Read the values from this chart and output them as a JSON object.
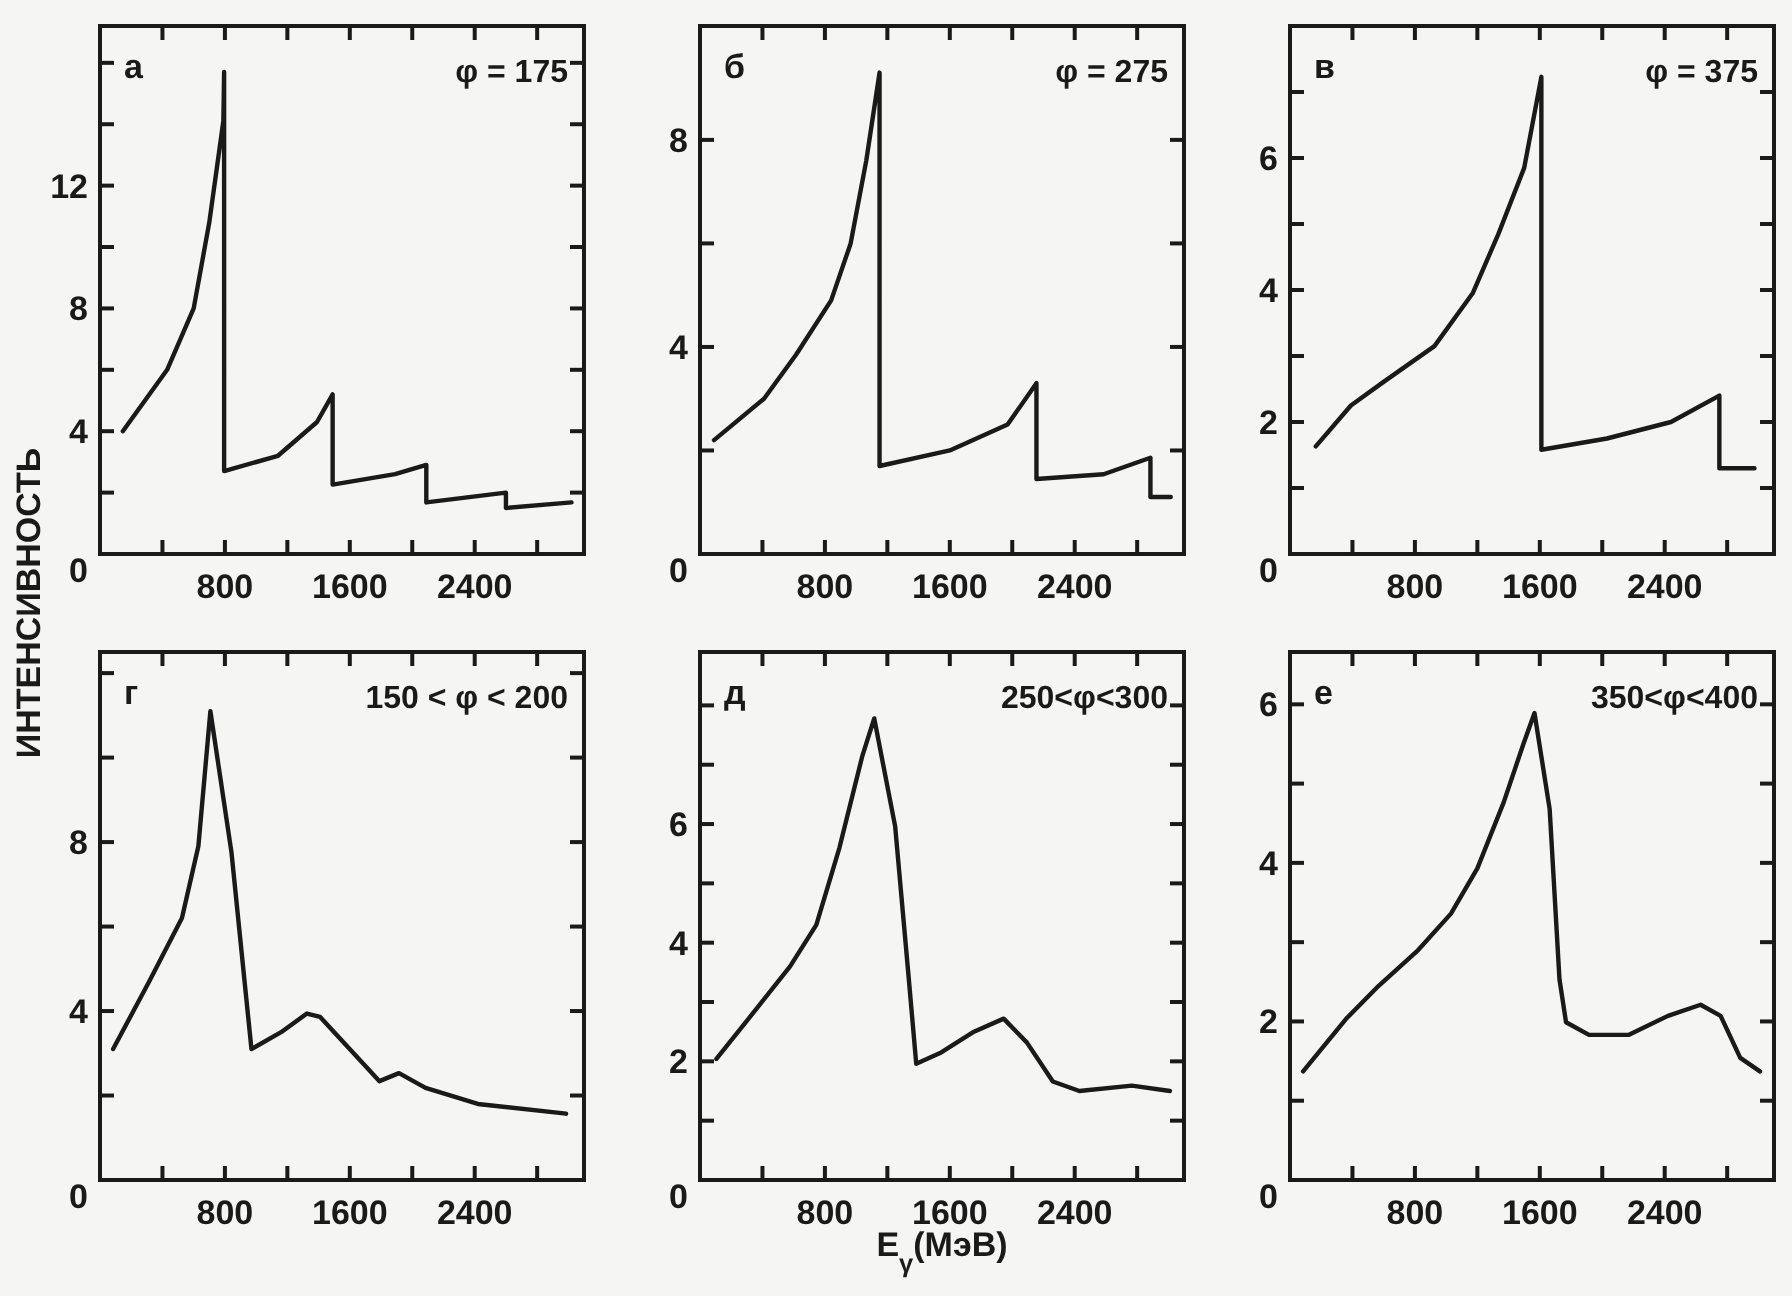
{
  "chart_data": [
    {
      "type": "line",
      "title": "а",
      "subtitle": "φ = 175",
      "ylabel": "ИНТЕНСИВНОСТЬ",
      "xlim": [
        0,
        3100
      ],
      "ylim": [
        0,
        17.2
      ],
      "color": "#1a1a1a",
      "xticks": [
        {
          "value": 0,
          "label": null
        },
        {
          "value": 400,
          "label": null
        },
        800,
        {
          "value": 1200,
          "label": null
        },
        1600,
        {
          "value": 2000,
          "label": null
        },
        2400,
        {
          "value": 2800,
          "label": null
        }
      ],
      "yticks": [
        0,
        {
          "value": 2,
          "label": null
        },
        4,
        {
          "value": 6,
          "label": null
        },
        8,
        {
          "value": 10,
          "label": null
        },
        12,
        {
          "value": 14,
          "label": null
        },
        {
          "value": 16,
          "label": null
        }
      ],
      "x": [
        146,
        430,
        600,
        700,
        790,
        795,
        795,
        1140,
        1390,
        1490,
        1490,
        1890,
        2090,
        2090,
        2600,
        2600,
        3020
      ],
      "values": [
        4.0,
        6.0,
        8.0,
        10.8,
        14.1,
        15.7,
        2.7,
        3.2,
        4.3,
        5.2,
        2.26,
        2.6,
        2.9,
        1.68,
        2.0,
        1.5,
        1.68
      ]
    },
    {
      "type": "line",
      "title": "б",
      "subtitle": "φ = 275",
      "xlim": [
        0,
        3100
      ],
      "ylim": [
        0,
        10.2
      ],
      "color": "#1a1a1a",
      "xticks": [
        {
          "value": 0,
          "label": null
        },
        {
          "value": 400,
          "label": null
        },
        800,
        {
          "value": 1200,
          "label": null
        },
        1600,
        {
          "value": 2000,
          "label": null
        },
        2400,
        {
          "value": 2800,
          "label": null
        }
      ],
      "yticks": [
        0,
        {
          "value": 2,
          "label": null
        },
        4,
        {
          "value": 6,
          "label": null
        },
        8
      ],
      "x": [
        90,
        410,
        615,
        840,
        965,
        1065,
        1150,
        1150,
        1600,
        1970,
        2155,
        2155,
        2585,
        2885,
        2885,
        3015
      ],
      "values": [
        2.2,
        3.0,
        3.85,
        4.9,
        6.0,
        7.6,
        9.3,
        1.7,
        2.0,
        2.5,
        3.3,
        1.45,
        1.54,
        1.86,
        1.1,
        1.1
      ]
    },
    {
      "type": "line",
      "title": "в",
      "subtitle": "φ = 375",
      "xlim": [
        0,
        3100
      ],
      "ylim": [
        0,
        8
      ],
      "color": "#1a1a1a",
      "xticks": [
        {
          "value": 0,
          "label": null
        },
        {
          "value": 400,
          "label": null
        },
        800,
        {
          "value": 1200,
          "label": null
        },
        1600,
        {
          "value": 2000,
          "label": null
        },
        2400,
        {
          "value": 2800,
          "label": null
        }
      ],
      "yticks": [
        0,
        {
          "value": 1,
          "label": null
        },
        2,
        {
          "value": 3,
          "label": null
        },
        4,
        {
          "value": 5,
          "label": null
        },
        6,
        {
          "value": 7,
          "label": null
        }
      ],
      "x": [
        165,
        390,
        595,
        925,
        1170,
        1335,
        1500,
        1610,
        1610,
        2030,
        2440,
        2750,
        2750,
        2975
      ],
      "values": [
        1.63,
        2.25,
        2.6,
        3.15,
        3.95,
        4.85,
        5.85,
        7.23,
        1.58,
        1.75,
        2.0,
        2.4,
        1.3,
        1.3
      ]
    },
    {
      "type": "line",
      "title": "г",
      "subtitle": "150 < φ < 200",
      "xlim": [
        0,
        3100
      ],
      "ylim": [
        0,
        12.5
      ],
      "color": "#1a1a1a",
      "xticks": [
        {
          "value": 0,
          "label": null
        },
        {
          "value": 400,
          "label": null
        },
        800,
        {
          "value": 1200,
          "label": null
        },
        1600,
        {
          "value": 2000,
          "label": null
        },
        2400,
        {
          "value": 2800,
          "label": null
        }
      ],
      "yticks": [
        0,
        {
          "value": 2,
          "label": null
        },
        4,
        {
          "value": 6,
          "label": null
        },
        8,
        {
          "value": 10,
          "label": null
        },
        {
          "value": 12,
          "label": null
        }
      ],
      "x": [
        84,
        315,
        525,
        630,
        707,
        842,
        970,
        1160,
        1325,
        1410,
        1580,
        1790,
        1915,
        2085,
        2420,
        2985
      ],
      "values": [
        3.1,
        4.7,
        6.2,
        7.9,
        11.1,
        7.76,
        3.1,
        3.5,
        3.94,
        3.86,
        3.18,
        2.34,
        2.53,
        2.18,
        1.8,
        1.57
      ]
    },
    {
      "type": "line",
      "title": "д",
      "subtitle": "250<φ<300",
      "xlabel": "E$_{γ}$(МэВ)",
      "xlim": [
        0,
        3100
      ],
      "ylim": [
        0,
        8.9
      ],
      "color": "#1a1a1a",
      "xticks": [
        {
          "value": 0,
          "label": null
        },
        {
          "value": 400,
          "label": null
        },
        800,
        {
          "value": 1200,
          "label": null
        },
        1600,
        {
          "value": 2000,
          "label": null
        },
        2400,
        {
          "value": 2800,
          "label": null
        }
      ],
      "yticks": [
        0,
        {
          "value": 1,
          "label": null
        },
        2,
        {
          "value": 3,
          "label": null
        },
        4,
        {
          "value": 5,
          "label": null
        },
        6,
        {
          "value": 7,
          "label": null
        },
        {
          "value": 8,
          "label": null
        }
      ],
      "x": [
        105,
        366,
        577,
        745,
        893,
        1040,
        1116,
        1250,
        1335,
        1385,
        1545,
        1755,
        1945,
        2093,
        2260,
        2430,
        2766,
        3010
      ],
      "values": [
        2.04,
        2.9,
        3.6,
        4.3,
        5.6,
        7.15,
        7.78,
        5.96,
        3.46,
        1.96,
        2.15,
        2.5,
        2.72,
        2.32,
        1.66,
        1.5,
        1.59,
        1.5
      ]
    },
    {
      "type": "line",
      "title": "е",
      "subtitle": "350<φ<400",
      "xlim": [
        0,
        3100
      ],
      "ylim": [
        0,
        6.66
      ],
      "color": "#1a1a1a",
      "xticks": [
        {
          "value": 0,
          "label": null
        },
        {
          "value": 400,
          "label": null
        },
        800,
        {
          "value": 1200,
          "label": null
        },
        1600,
        {
          "value": 2000,
          "label": null
        },
        2400,
        {
          "value": 2800,
          "label": null
        }
      ],
      "yticks": [
        0,
        {
          "value": 1,
          "label": null
        },
        2,
        {
          "value": 3,
          "label": null
        },
        4,
        {
          "value": 5,
          "label": null
        },
        6
      ],
      "x": [
        84,
        358,
        568,
        821,
        1031,
        1200,
        1368,
        1495,
        1566,
        1663,
        1726,
        1768,
        1915,
        2168,
        2421,
        2630,
        2758,
        2884,
        3010
      ],
      "values": [
        1.37,
        2.03,
        2.45,
        2.9,
        3.36,
        3.93,
        4.76,
        5.5,
        5.89,
        4.68,
        2.53,
        1.99,
        1.83,
        1.83,
        2.07,
        2.21,
        2.07,
        1.54,
        1.37
      ]
    }
  ]
}
